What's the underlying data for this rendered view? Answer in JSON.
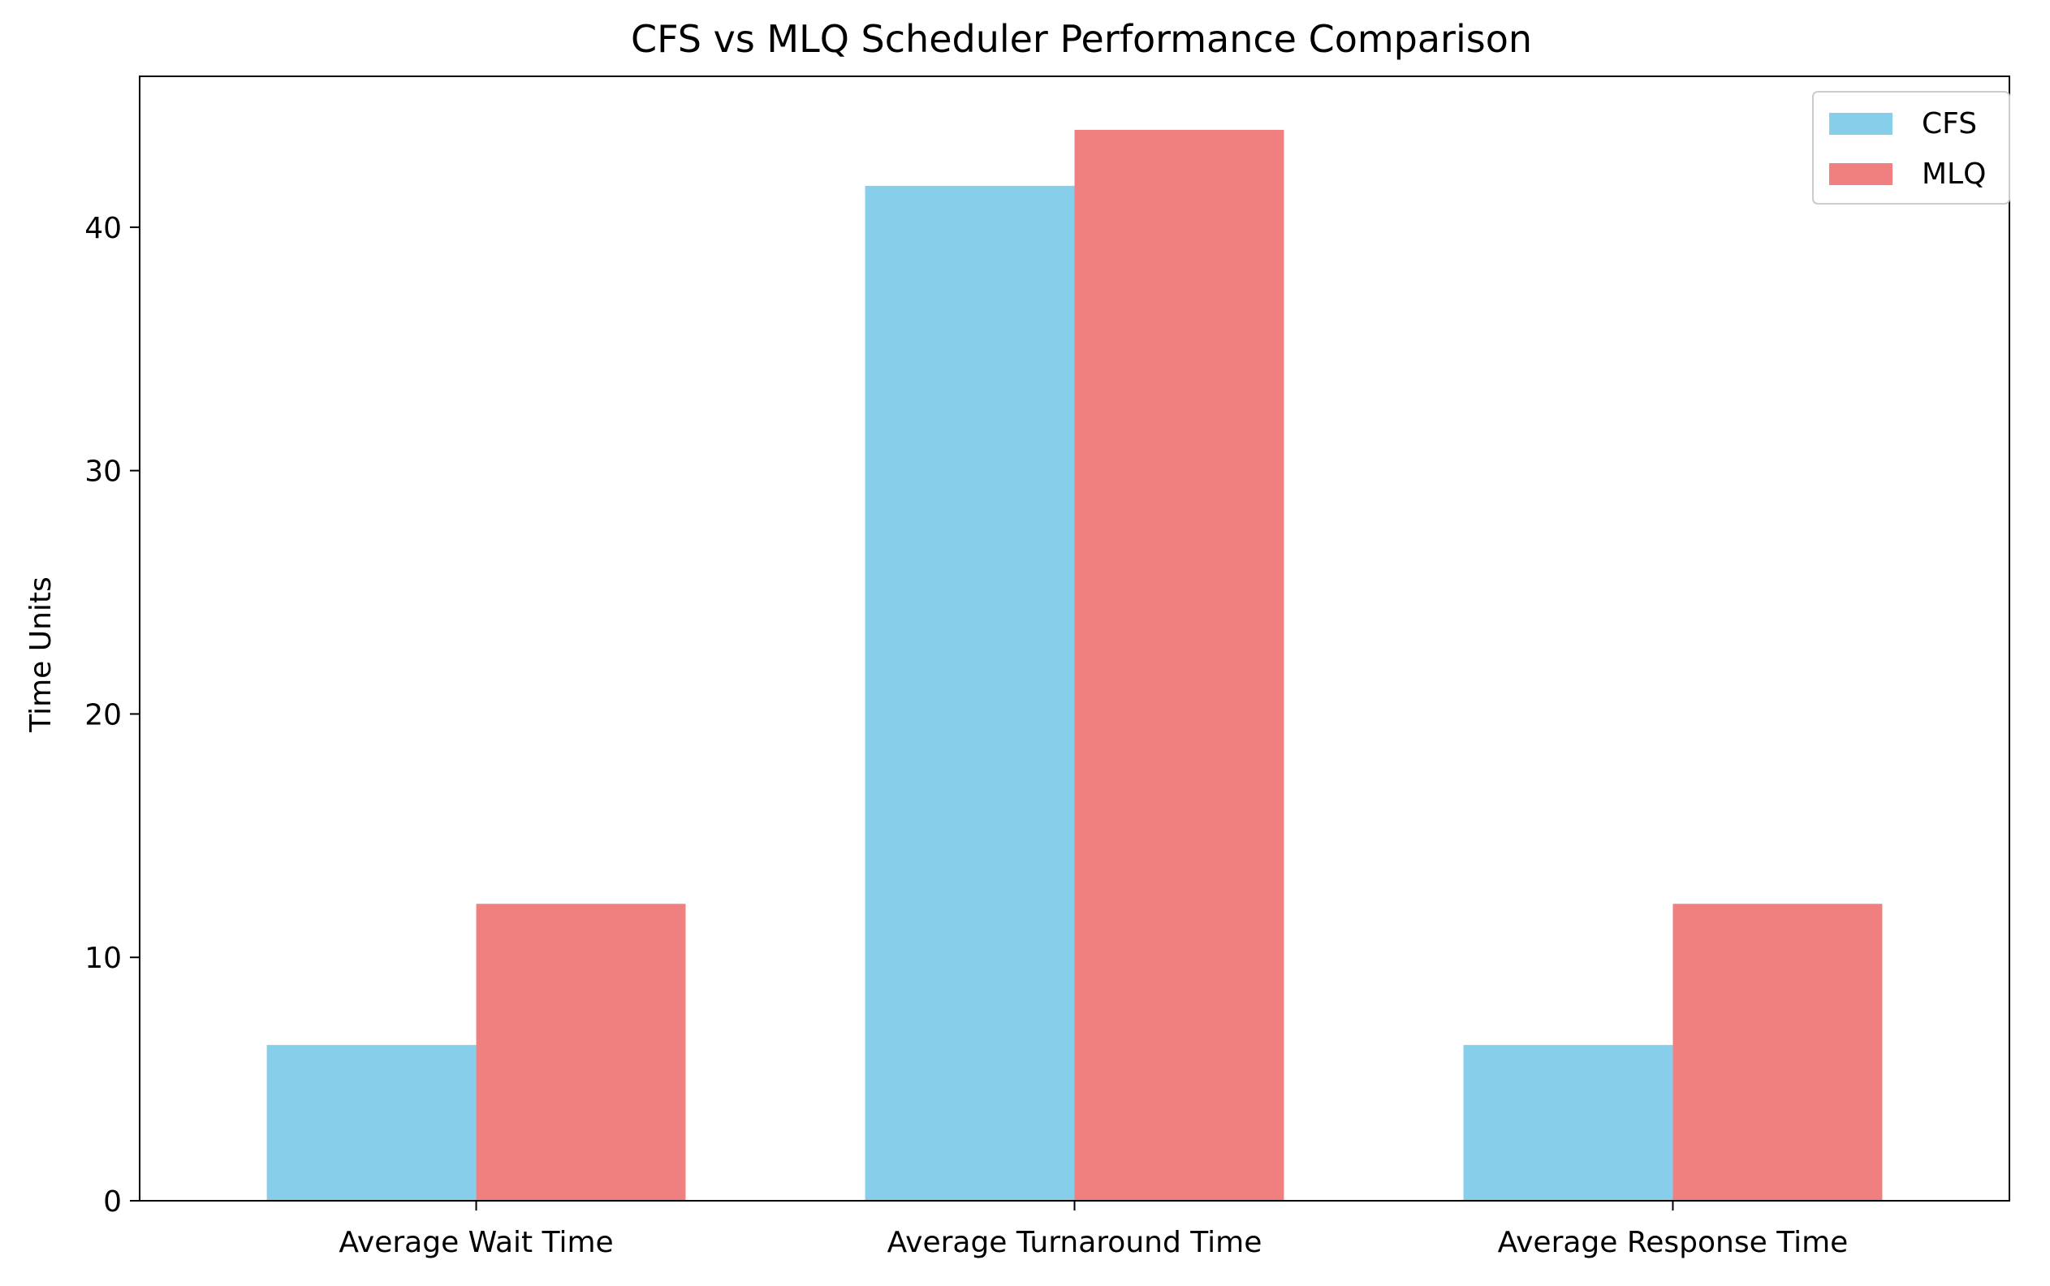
{
  "chart_data": {
    "type": "bar",
    "title": "CFS vs MLQ Scheduler Performance Comparison",
    "xlabel": "",
    "ylabel": "Time Units",
    "categories": [
      "Average Wait Time",
      "Average Turnaround Time",
      "Average Response Time"
    ],
    "series": [
      {
        "name": "CFS",
        "color": "#87CEEB",
        "values": [
          6.4,
          41.7,
          6.4
        ]
      },
      {
        "name": "MLQ",
        "color": "#F08080",
        "values": [
          12.2,
          44.0,
          12.2
        ]
      }
    ],
    "ylim": [
      0,
      46.2
    ],
    "yticks": [
      0,
      10,
      20,
      30,
      40
    ],
    "grid": false,
    "legend_position": "top-right"
  }
}
